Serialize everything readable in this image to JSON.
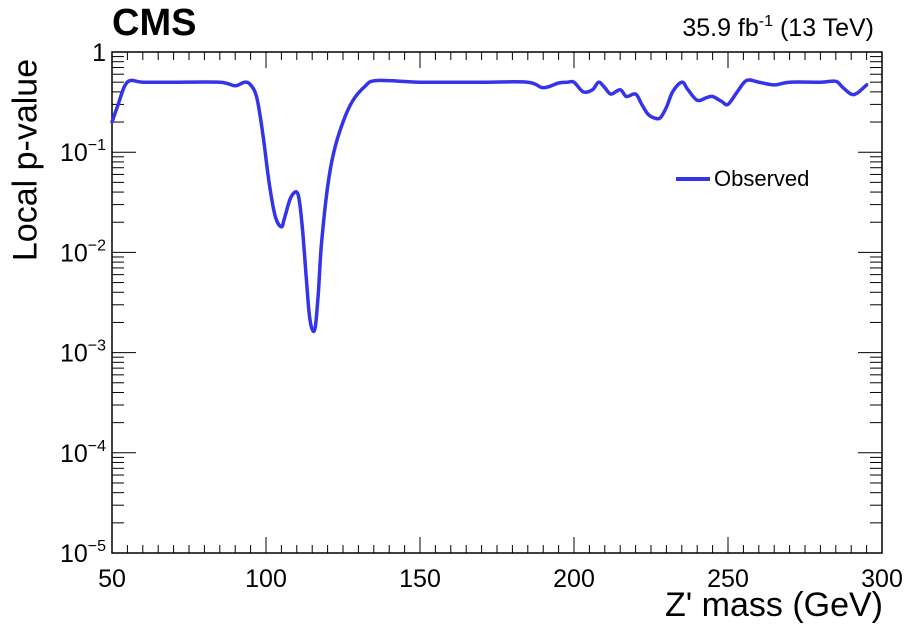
{
  "header": {
    "experiment": "CMS",
    "lumi_prefix": "35.9 fb",
    "lumi_exp": "-1",
    "lumi_suffix": " (13 TeV)"
  },
  "chart_data": {
    "type": "line",
    "title": "",
    "xlabel": "Z' mass (GeV)",
    "ylabel": "Local p-value",
    "xlim": [
      50,
      300
    ],
    "ylim": [
      1e-05,
      1
    ],
    "yscale": "log",
    "x_ticks": [
      50,
      100,
      150,
      200,
      250,
      300
    ],
    "y_ticks": [
      {
        "base": "10",
        "exp": "−5",
        "value": 1e-05
      },
      {
        "base": "10",
        "exp": "−4",
        "value": 0.0001
      },
      {
        "base": "10",
        "exp": "−3",
        "value": 0.001
      },
      {
        "base": "10",
        "exp": "−2",
        "value": 0.01
      },
      {
        "base": "10",
        "exp": "−1",
        "value": 0.1
      },
      {
        "base": "1",
        "exp": "",
        "value": 1
      }
    ],
    "legend_position": "top-right",
    "series": [
      {
        "name": "Observed",
        "color": "#3434e8",
        "x": [
          50,
          52,
          54,
          56,
          60,
          70,
          85,
          90,
          93,
          95,
          97,
          99,
          101,
          103,
          105,
          106,
          108,
          110,
          111,
          112,
          113,
          114,
          115,
          116,
          117,
          118,
          120,
          122,
          125,
          128,
          132,
          136,
          150,
          170,
          185,
          190,
          195,
          198,
          200,
          203,
          206,
          208,
          210,
          212,
          215,
          217,
          220,
          222,
          224,
          226,
          228,
          230,
          232,
          235,
          237,
          240,
          243,
          245,
          248,
          250,
          253,
          256,
          260,
          265,
          270,
          280,
          285,
          287,
          290,
          292,
          295
        ],
        "y": [
          0.2,
          0.3,
          0.45,
          0.52,
          0.5,
          0.5,
          0.5,
          0.46,
          0.5,
          0.47,
          0.35,
          0.15,
          0.05,
          0.023,
          0.018,
          0.022,
          0.035,
          0.04,
          0.03,
          0.015,
          0.006,
          0.0025,
          0.0017,
          0.0018,
          0.004,
          0.012,
          0.045,
          0.1,
          0.2,
          0.32,
          0.45,
          0.52,
          0.5,
          0.5,
          0.5,
          0.44,
          0.49,
          0.5,
          0.5,
          0.4,
          0.42,
          0.5,
          0.44,
          0.38,
          0.42,
          0.36,
          0.38,
          0.3,
          0.24,
          0.22,
          0.22,
          0.28,
          0.4,
          0.5,
          0.42,
          0.33,
          0.35,
          0.36,
          0.32,
          0.3,
          0.4,
          0.52,
          0.5,
          0.47,
          0.5,
          0.5,
          0.51,
          0.45,
          0.38,
          0.39,
          0.47
        ]
      }
    ]
  }
}
